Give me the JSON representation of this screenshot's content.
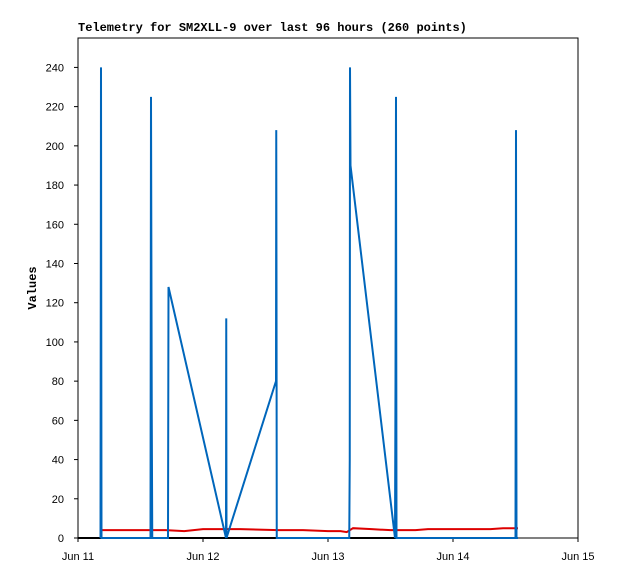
{
  "chart_data": {
    "type": "line",
    "title": "Telemetry for SM2XLL-9 over last 96 hours (260 points)",
    "y_label": "Values",
    "xlim": [
      0,
      4
    ],
    "ylim": [
      0,
      255
    ],
    "xticks": [
      {
        "value": 0,
        "label": "Jun 11"
      },
      {
        "value": 1,
        "label": "Jun 12"
      },
      {
        "value": 2,
        "label": "Jun 13"
      },
      {
        "value": 3,
        "label": "Jun 14"
      },
      {
        "value": 4,
        "label": "Jun 15"
      }
    ],
    "yticks": [
      0,
      20,
      40,
      60,
      80,
      100,
      120,
      140,
      160,
      180,
      200,
      220,
      240
    ],
    "series": [
      {
        "color": "#000000",
        "x": [
          0.0,
          3.52
        ],
        "values": [
          0,
          0
        ]
      },
      {
        "color": "#dd0000",
        "x": [
          0.18,
          0.7,
          0.85,
          1.0,
          1.3,
          1.6,
          1.8,
          2.0,
          2.1,
          2.15,
          2.2,
          2.35,
          2.5,
          2.7,
          2.8,
          3.0,
          3.3,
          3.4,
          3.52
        ],
        "values": [
          4,
          4,
          3.5,
          4.5,
          4.5,
          4,
          4,
          3.5,
          3.5,
          3,
          5,
          4.5,
          4,
          4,
          4.5,
          4.5,
          4.5,
          5,
          5
        ]
      },
      {
        "color": "#0066bb",
        "x": [
          0.18,
          0.184,
          0.188,
          0.58,
          0.584,
          0.59,
          0.594,
          0.72,
          0.724,
          1.184,
          1.186,
          1.188,
          1.584,
          1.586,
          1.588,
          1.59,
          2.17,
          2.174,
          2.176,
          2.18,
          2.536,
          2.54,
          2.544,
          2.548,
          3.5,
          3.504,
          3.508,
          3.52
        ],
        "values": [
          0,
          240,
          0,
          0,
          225,
          65,
          0,
          0,
          128,
          0,
          112,
          0,
          80,
          208,
          128,
          0,
          0,
          40,
          240,
          190,
          0,
          80,
          225,
          0,
          0,
          208,
          0,
          0
        ]
      }
    ]
  }
}
